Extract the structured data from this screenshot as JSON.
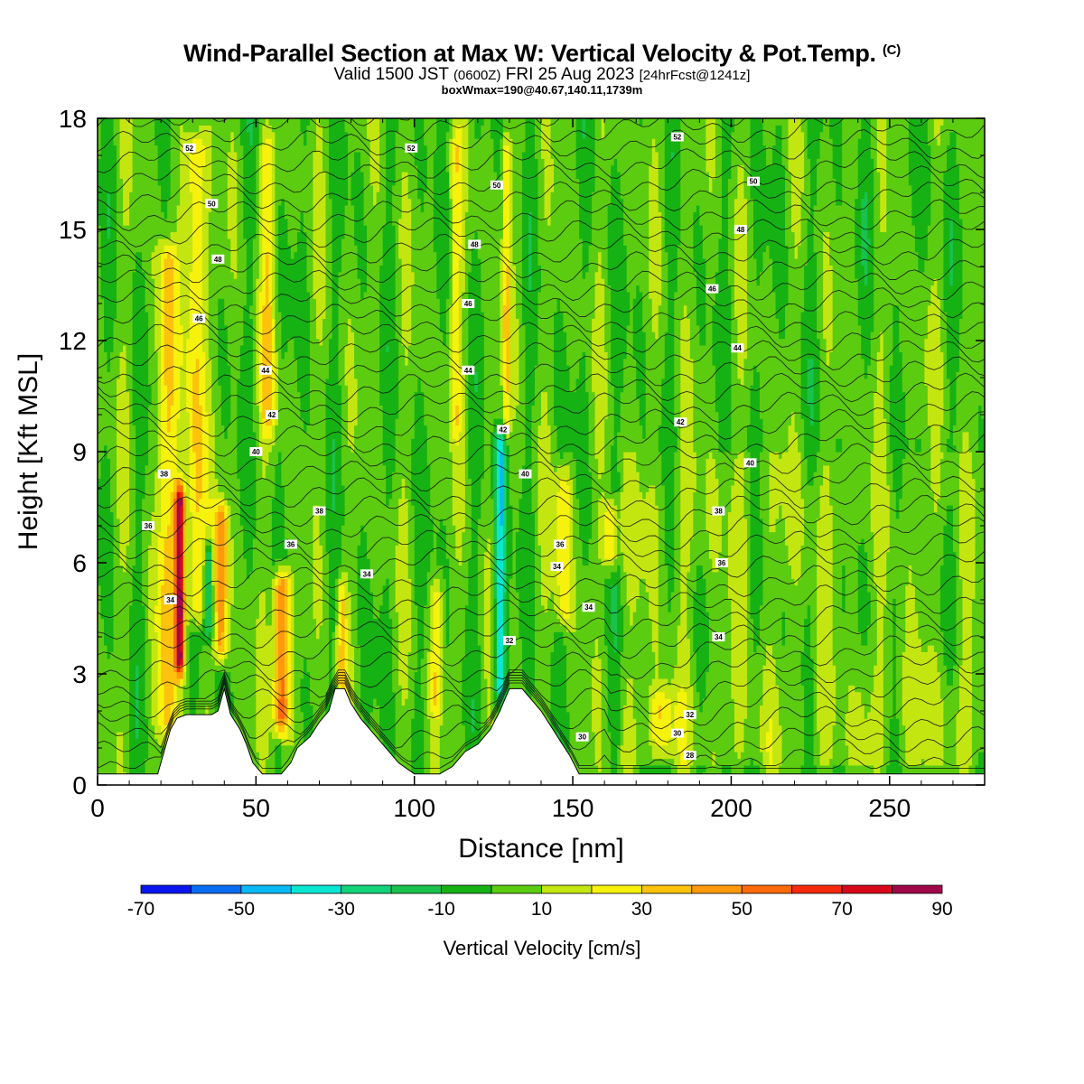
{
  "header": {
    "title": "Wind-Parallel Section at Max W: Vertical Velocity & Pot.Temp.",
    "title_mark": "(C)",
    "subtitle_main": "Valid 1500 JST",
    "subtitle_z": "(0600Z)",
    "subtitle_date": "FRI 25 Aug 2023",
    "subtitle_fcst": "[24hrFcst@1241z]",
    "box_line": "boxWmax=190@40.67,140.11,1739m"
  },
  "chart_data": {
    "type": "heatmap",
    "title": "Wind-Parallel Section at Max W: Vertical Velocity & Pot.Temp.",
    "xlabel": "Distance [nm]",
    "ylabel": "Height [Kft MSL]",
    "xlim": [
      0,
      280
    ],
    "ylim": [
      0,
      18
    ],
    "x_ticks": [
      0,
      50,
      100,
      150,
      200,
      250
    ],
    "y_ticks": [
      0,
      3,
      6,
      9,
      12,
      15,
      18
    ],
    "colorbar": {
      "title": "Vertical Velocity [cm/s]",
      "tick_labels": [
        "-70",
        "-50",
        "-30",
        "-10",
        "10",
        "30",
        "50",
        "70",
        "90"
      ],
      "bounds": [
        -70,
        -60,
        -50,
        -40,
        -30,
        -20,
        -10,
        0,
        10,
        20,
        30,
        40,
        50,
        60,
        70,
        80,
        90
      ],
      "colors": [
        "#0a16f0",
        "#0a6cf2",
        "#0ab8f4",
        "#0ae6d2",
        "#12d27a",
        "#18c24c",
        "#16b214",
        "#5ccc10",
        "#c4e610",
        "#f6f20c",
        "#fcc20c",
        "#fc9a0c",
        "#fc6a0c",
        "#f82a0c",
        "#d8081a",
        "#a0064a",
        "#60087c"
      ]
    },
    "terrain": [
      [
        0,
        0.3
      ],
      [
        10,
        0.3
      ],
      [
        19,
        0.3
      ],
      [
        21,
        0.9
      ],
      [
        23,
        1.5
      ],
      [
        25,
        1.8
      ],
      [
        28,
        1.9
      ],
      [
        32,
        1.9
      ],
      [
        36,
        1.9
      ],
      [
        38,
        2.0
      ],
      [
        40,
        2.6
      ],
      [
        42,
        1.9
      ],
      [
        45,
        1.5
      ],
      [
        47,
        1.1
      ],
      [
        49,
        0.6
      ],
      [
        52,
        0.3
      ],
      [
        58,
        0.3
      ],
      [
        61,
        0.6
      ],
      [
        63,
        1.0
      ],
      [
        67,
        1.3
      ],
      [
        70,
        1.7
      ],
      [
        73,
        2.0
      ],
      [
        75,
        2.6
      ],
      [
        78,
        2.6
      ],
      [
        80,
        2.2
      ],
      [
        83,
        1.8
      ],
      [
        88,
        1.3
      ],
      [
        92,
        0.9
      ],
      [
        95,
        0.6
      ],
      [
        100,
        0.3
      ],
      [
        108,
        0.3
      ],
      [
        112,
        0.5
      ],
      [
        116,
        0.9
      ],
      [
        120,
        1.1
      ],
      [
        124,
        1.5
      ],
      [
        127,
        2.0
      ],
      [
        129,
        2.4
      ],
      [
        130,
        2.6
      ],
      [
        134,
        2.6
      ],
      [
        137,
        2.3
      ],
      [
        140,
        2.0
      ],
      [
        143,
        1.6
      ],
      [
        146,
        1.2
      ],
      [
        149,
        0.8
      ],
      [
        152,
        0.3
      ],
      [
        280,
        0.3
      ]
    ],
    "pot_temp_labels": [
      {
        "x": 29,
        "y": 17.2,
        "text": "52"
      },
      {
        "x": 99,
        "y": 17.2,
        "text": "52"
      },
      {
        "x": 183,
        "y": 17.5,
        "text": "52"
      },
      {
        "x": 36,
        "y": 15.7,
        "text": "50"
      },
      {
        "x": 126,
        "y": 16.2,
        "text": "50"
      },
      {
        "x": 207,
        "y": 16.3,
        "text": "50"
      },
      {
        "x": 38,
        "y": 14.2,
        "text": "48"
      },
      {
        "x": 119,
        "y": 14.6,
        "text": "48"
      },
      {
        "x": 203,
        "y": 15.0,
        "text": "48"
      },
      {
        "x": 32,
        "y": 12.6,
        "text": "46"
      },
      {
        "x": 117,
        "y": 13.0,
        "text": "46"
      },
      {
        "x": 194,
        "y": 13.4,
        "text": "46"
      },
      {
        "x": 53,
        "y": 11.2,
        "text": "44"
      },
      {
        "x": 117,
        "y": 11.2,
        "text": "44"
      },
      {
        "x": 202,
        "y": 11.8,
        "text": "44"
      },
      {
        "x": 55,
        "y": 10.0,
        "text": "42"
      },
      {
        "x": 128,
        "y": 9.6,
        "text": "42"
      },
      {
        "x": 184,
        "y": 9.8,
        "text": "42"
      },
      {
        "x": 50,
        "y": 9.0,
        "text": "40"
      },
      {
        "x": 135,
        "y": 8.4,
        "text": "40"
      },
      {
        "x": 206,
        "y": 8.7,
        "text": "40"
      },
      {
        "x": 21,
        "y": 8.4,
        "text": "38"
      },
      {
        "x": 70,
        "y": 7.4,
        "text": "38"
      },
      {
        "x": 196,
        "y": 7.4,
        "text": "38"
      },
      {
        "x": 16,
        "y": 7.0,
        "text": "36"
      },
      {
        "x": 61,
        "y": 6.5,
        "text": "36"
      },
      {
        "x": 146,
        "y": 6.5,
        "text": "36"
      },
      {
        "x": 197,
        "y": 6.0,
        "text": "36"
      },
      {
        "x": 23,
        "y": 5.0,
        "text": "34"
      },
      {
        "x": 85,
        "y": 5.7,
        "text": "34"
      },
      {
        "x": 145,
        "y": 5.9,
        "text": "34"
      },
      {
        "x": 155,
        "y": 4.8,
        "text": "34"
      },
      {
        "x": 196,
        "y": 4.0,
        "text": "34"
      },
      {
        "x": 130,
        "y": 3.9,
        "text": "32"
      },
      {
        "x": 187,
        "y": 1.9,
        "text": "32"
      },
      {
        "x": 153,
        "y": 1.3,
        "text": "30"
      },
      {
        "x": 183,
        "y": 1.4,
        "text": "30"
      },
      {
        "x": 187,
        "y": 0.8,
        "text": "28"
      }
    ],
    "plumes": [
      {
        "x": 22,
        "w": 3,
        "y0": 0.8,
        "y1": 15,
        "amp": 30
      },
      {
        "x": 26,
        "w": 1.6,
        "y0": 2.6,
        "y1": 8.5,
        "amp": 78
      },
      {
        "x": 31,
        "w": 3,
        "y0": 4,
        "y1": 18,
        "amp": 34
      },
      {
        "x": 35,
        "w": 1.5,
        "y0": 3.5,
        "y1": 7,
        "amp": -35
      },
      {
        "x": 39,
        "w": 2.2,
        "y0": 3,
        "y1": 8,
        "amp": 45
      },
      {
        "x": 58,
        "w": 2.5,
        "y0": 1.0,
        "y1": 6.2,
        "amp": 58
      },
      {
        "x": 54,
        "w": 2.5,
        "y0": 9,
        "y1": 18,
        "amp": 22
      },
      {
        "x": 77,
        "w": 1.5,
        "y0": 2.0,
        "y1": 6,
        "amp": 28
      },
      {
        "x": 107,
        "w": 2,
        "y0": 1.5,
        "y1": 6,
        "amp": 22
      },
      {
        "x": 113,
        "w": 2,
        "y0": 9,
        "y1": 18,
        "amp": 18
      },
      {
        "x": 127,
        "w": 1.8,
        "y0": 1.8,
        "y1": 10,
        "amp": -42
      },
      {
        "x": 129,
        "w": 1.3,
        "y0": 9,
        "y1": 18,
        "amp": 26
      },
      {
        "x": 147,
        "w": 2.5,
        "y0": 4,
        "y1": 9,
        "amp": 28
      },
      {
        "x": 162,
        "w": 2.5,
        "y0": 5.5,
        "y1": 8,
        "amp": 34
      },
      {
        "x": 178,
        "w": 4,
        "y0": 0.5,
        "y1": 3,
        "amp": 22
      }
    ]
  }
}
